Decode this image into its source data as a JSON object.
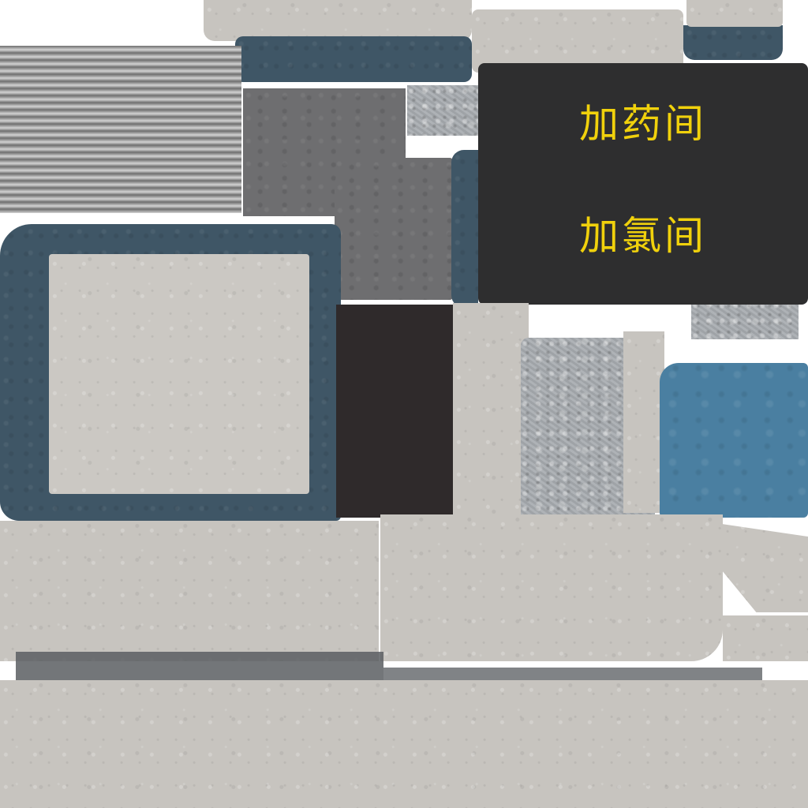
{
  "sign": {
    "line1": "加药间",
    "line2": "加氯间",
    "text_color": "#f0d10c",
    "background_color": "#2e2e2f"
  },
  "palette": {
    "concrete": "#c7c4bf",
    "slate_blue": "#3f5666",
    "bright_blue": "#4a7fa1",
    "dark_gray": "#6e6e70",
    "dark_brown": "#2f2a2b",
    "stone": "#a9adb1",
    "corrugated_metal": "#9a9a9a"
  }
}
